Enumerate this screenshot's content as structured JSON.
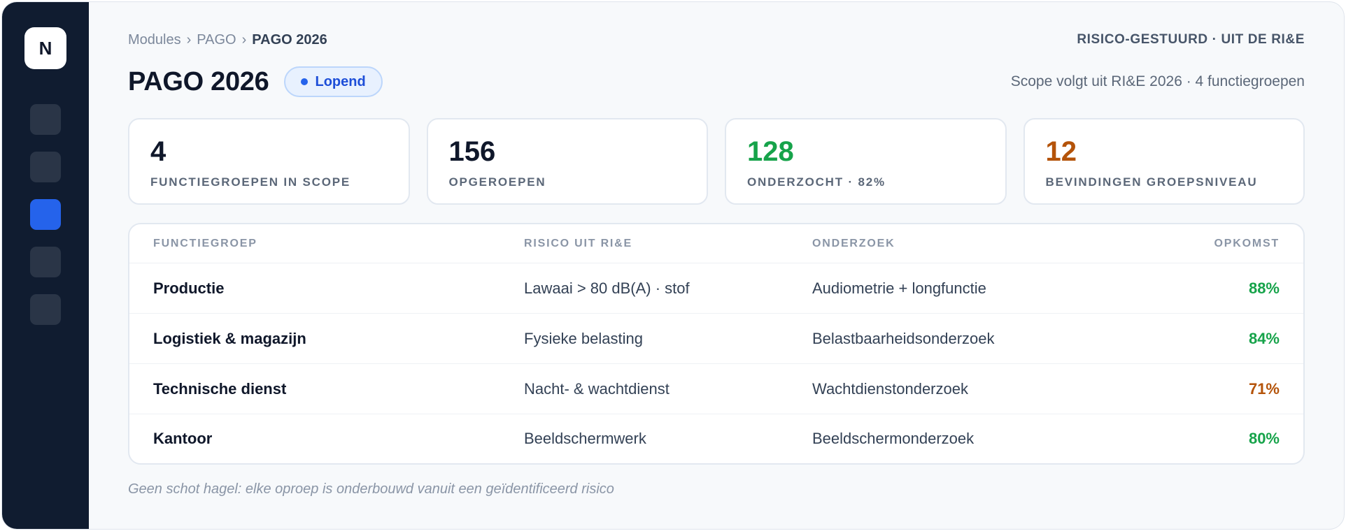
{
  "sidebar": {
    "logo_letter": "N",
    "nav_items": [
      {
        "state": "inactive"
      },
      {
        "state": "inactive"
      },
      {
        "state": "active"
      },
      {
        "state": "inactive"
      },
      {
        "state": "inactive"
      }
    ]
  },
  "breadcrumb": {
    "items": [
      "Modules",
      "PAGO",
      "PAGO 2026"
    ],
    "separator": "›"
  },
  "header": {
    "eyebrow": "RISICO-GESTUURD · UIT DE RI&E",
    "title": "PAGO 2026",
    "status_badge": "Lopend",
    "scope_text": "Scope volgt uit RI&E 2026 · 4 functiegroepen"
  },
  "stats": [
    {
      "value": "4",
      "label": "FUNCTIEGROEPEN IN SCOPE",
      "color": "#0f172a"
    },
    {
      "value": "156",
      "label": "OPGEROEPEN",
      "color": "#0f172a"
    },
    {
      "value": "128",
      "label": "ONDERZOCHT · 82%",
      "color": "#16a34a"
    },
    {
      "value": "12",
      "label": "BEVINDINGEN GROEPSNIVEAU",
      "color": "#b45309"
    }
  ],
  "table": {
    "columns": [
      "FUNCTIEGROEP",
      "RISICO UIT RI&E",
      "ONDERZOEK",
      "OPKOMST"
    ],
    "rows": [
      {
        "group": "Productie",
        "risk": "Lawaai > 80 dB(A) · stof",
        "exam": "Audiometrie + longfunctie",
        "turnout": "88%",
        "turnout_color": "#16a34a"
      },
      {
        "group": "Logistiek & magazijn",
        "risk": "Fysieke belasting",
        "exam": "Belastbaarheidsonderzoek",
        "turnout": "84%",
        "turnout_color": "#16a34a"
      },
      {
        "group": "Technische dienst",
        "risk": "Nacht- & wachtdienst",
        "exam": "Wachtdienstonderzoek",
        "turnout": "71%",
        "turnout_color": "#b45309"
      },
      {
        "group": "Kantoor",
        "risk": "Beeldschermwerk",
        "exam": "Beeldschermonderzoek",
        "turnout": "80%",
        "turnout_color": "#16a34a"
      }
    ]
  },
  "footnote": "Geen schot hagel: elke oproep is onderbouwd vanuit een geïdentificeerd risico"
}
